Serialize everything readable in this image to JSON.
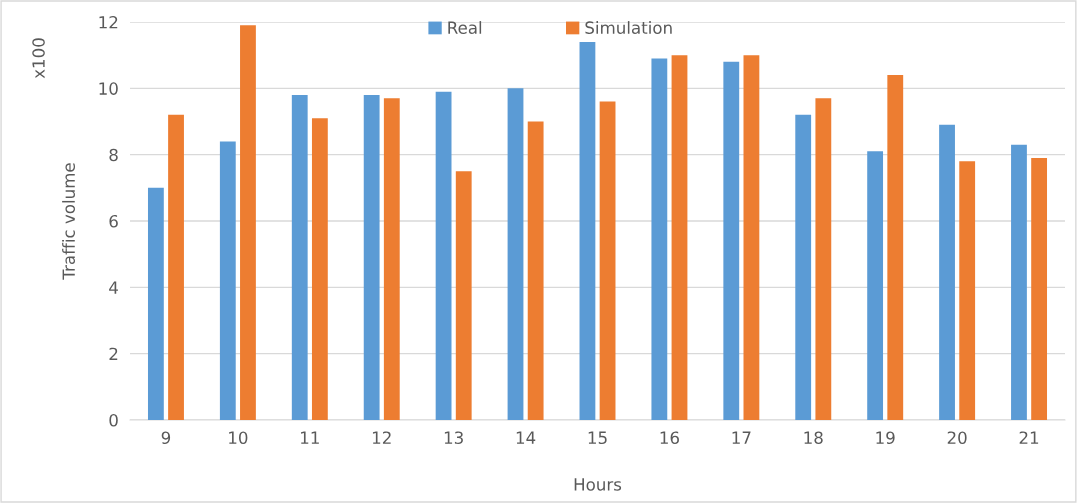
{
  "chart_data": {
    "type": "bar",
    "xlabel": "Hours",
    "ylabel": "Traffic volume",
    "annotations": [
      "x100"
    ],
    "categories": [
      "9",
      "10",
      "11",
      "12",
      "13",
      "14",
      "15",
      "16",
      "17",
      "18",
      "19",
      "20",
      "21"
    ],
    "series": [
      {
        "name": "Real",
        "color": "#5b9bd5",
        "values": [
          7.0,
          8.4,
          9.8,
          9.8,
          9.9,
          10.0,
          11.4,
          10.9,
          10.8,
          9.2,
          8.1,
          8.9,
          8.3
        ]
      },
      {
        "name": "Simulation",
        "color": "#ed7d31",
        "values": [
          9.2,
          11.9,
          9.1,
          9.7,
          7.5,
          9.0,
          9.6,
          11.0,
          11.0,
          9.7,
          10.4,
          7.8,
          7.9
        ]
      }
    ],
    "ylim": [
      0,
      12
    ],
    "yticks": [
      0,
      2,
      4,
      6,
      8,
      10,
      12
    ],
    "grid": "y",
    "legend": "top"
  }
}
